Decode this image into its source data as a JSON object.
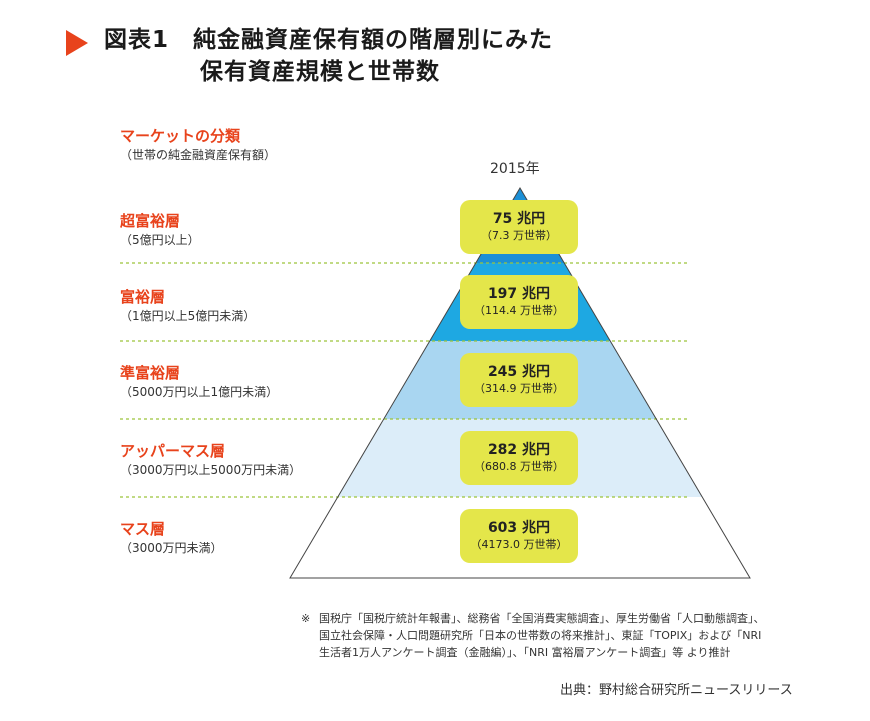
{
  "title": {
    "line1": "図表1　純金融資産保有額の階層別にみた",
    "line2": "保有資産規模と世帯数"
  },
  "legend_header": {
    "name": "マーケットの分類",
    "sub": "（世帯の純金融資産保有額）"
  },
  "year": "2015年",
  "tiers": [
    {
      "name": "超富裕層",
      "range": "（5億円以上）",
      "amount": "75 兆円",
      "households": "（7.3 万世帯）"
    },
    {
      "name": "富裕層",
      "range": "（1億円以上5億円未満）",
      "amount": "197 兆円",
      "households": "（114.4 万世帯）"
    },
    {
      "name": "準富裕層",
      "range": "（5000万円以上1億円未満）",
      "amount": "245 兆円",
      "households": "（314.9 万世帯）"
    },
    {
      "name": "アッパーマス層",
      "range": "（3000万円以上5000万円未満）",
      "amount": "282 兆円",
      "households": "（680.8 万世帯）"
    },
    {
      "name": "マス層",
      "range": "（3000万円未満）",
      "amount": "603 兆円",
      "households": "（4173.0 万世帯）"
    }
  ],
  "colors": {
    "accent": "#e8431c",
    "box": "#e4e64a",
    "tier_fills": [
      "#1c8fd6",
      "#1ea8e2",
      "#a9d6f1",
      "#dcedf9",
      "#ffffff"
    ],
    "separator": "#9cc43a"
  },
  "note": {
    "mark": "※",
    "lines": [
      "国税庁「国税庁統計年報書」、総務省「全国消費実態調査」、厚生労働省「人口動態調査」、",
      "国立社会保障・人口問題研究所「日本の世帯数の将来推計」、東証「TOPIX」および「NRI",
      "生活者1万人アンケート調査（金融編）」、「NRI 富裕層アンケート調査」等 より推計"
    ]
  },
  "source": "出典：野村総合研究所ニュースリリース"
}
